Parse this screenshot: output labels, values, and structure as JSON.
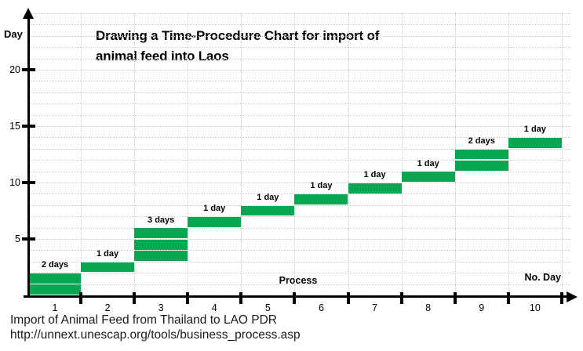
{
  "page": {
    "title_line1": "Drawing a Time-Procedure Chart for import of",
    "title_line2": "animal feed into Laos",
    "caption_line1": "Import of Animal Feed from Thailand to LAO PDR",
    "caption_line2": "http://unnext.unescap.org/tools/business_process.asp"
  },
  "axes": {
    "y_axis_title": "Day",
    "x_axis_title": "Process",
    "x_axis_end_title": "No. Day"
  },
  "colors": {
    "bar_green": "#0aa550",
    "axis_black": "#000000",
    "grid_gray": "#c9c9c9",
    "text_black": "#1a1a1a"
  },
  "chart_data": {
    "type": "bar",
    "variant": "time-procedure step chart; each process bar is stacked 1-day segments separated by thin white lines",
    "title": "Drawing a Time-Procedure Chart for import of animal feed into Laos",
    "xlabel": "Process",
    "ylabel": "Day",
    "x_axis_end_label": "No. Day",
    "categories": [
      "1",
      "2",
      "3",
      "4",
      "5",
      "6",
      "7",
      "8",
      "9",
      "10"
    ],
    "bars": [
      {
        "process": "1",
        "start_day": 0,
        "duration_days": 2,
        "label": "2 days"
      },
      {
        "process": "2",
        "start_day": 2,
        "duration_days": 1,
        "label": "1 day"
      },
      {
        "process": "3",
        "start_day": 3,
        "duration_days": 3,
        "label": "3 days"
      },
      {
        "process": "4",
        "start_day": 6,
        "duration_days": 1,
        "label": "1 day"
      },
      {
        "process": "5",
        "start_day": 7,
        "duration_days": 1,
        "label": "1 day"
      },
      {
        "process": "6",
        "start_day": 8,
        "duration_days": 1,
        "label": "1 day"
      },
      {
        "process": "7",
        "start_day": 9,
        "duration_days": 1,
        "label": "1 day"
      },
      {
        "process": "8",
        "start_day": 10,
        "duration_days": 1,
        "label": "1 day"
      },
      {
        "process": "9",
        "start_day": 11,
        "duration_days": 2,
        "label": "2 days"
      },
      {
        "process": "10",
        "start_day": 13,
        "duration_days": 1,
        "label": "1 day"
      }
    ],
    "total_days": 14,
    "y_ticks": [
      5,
      10,
      15,
      20
    ],
    "ylim": [
      0,
      25
    ],
    "grid": true,
    "legend": false
  }
}
